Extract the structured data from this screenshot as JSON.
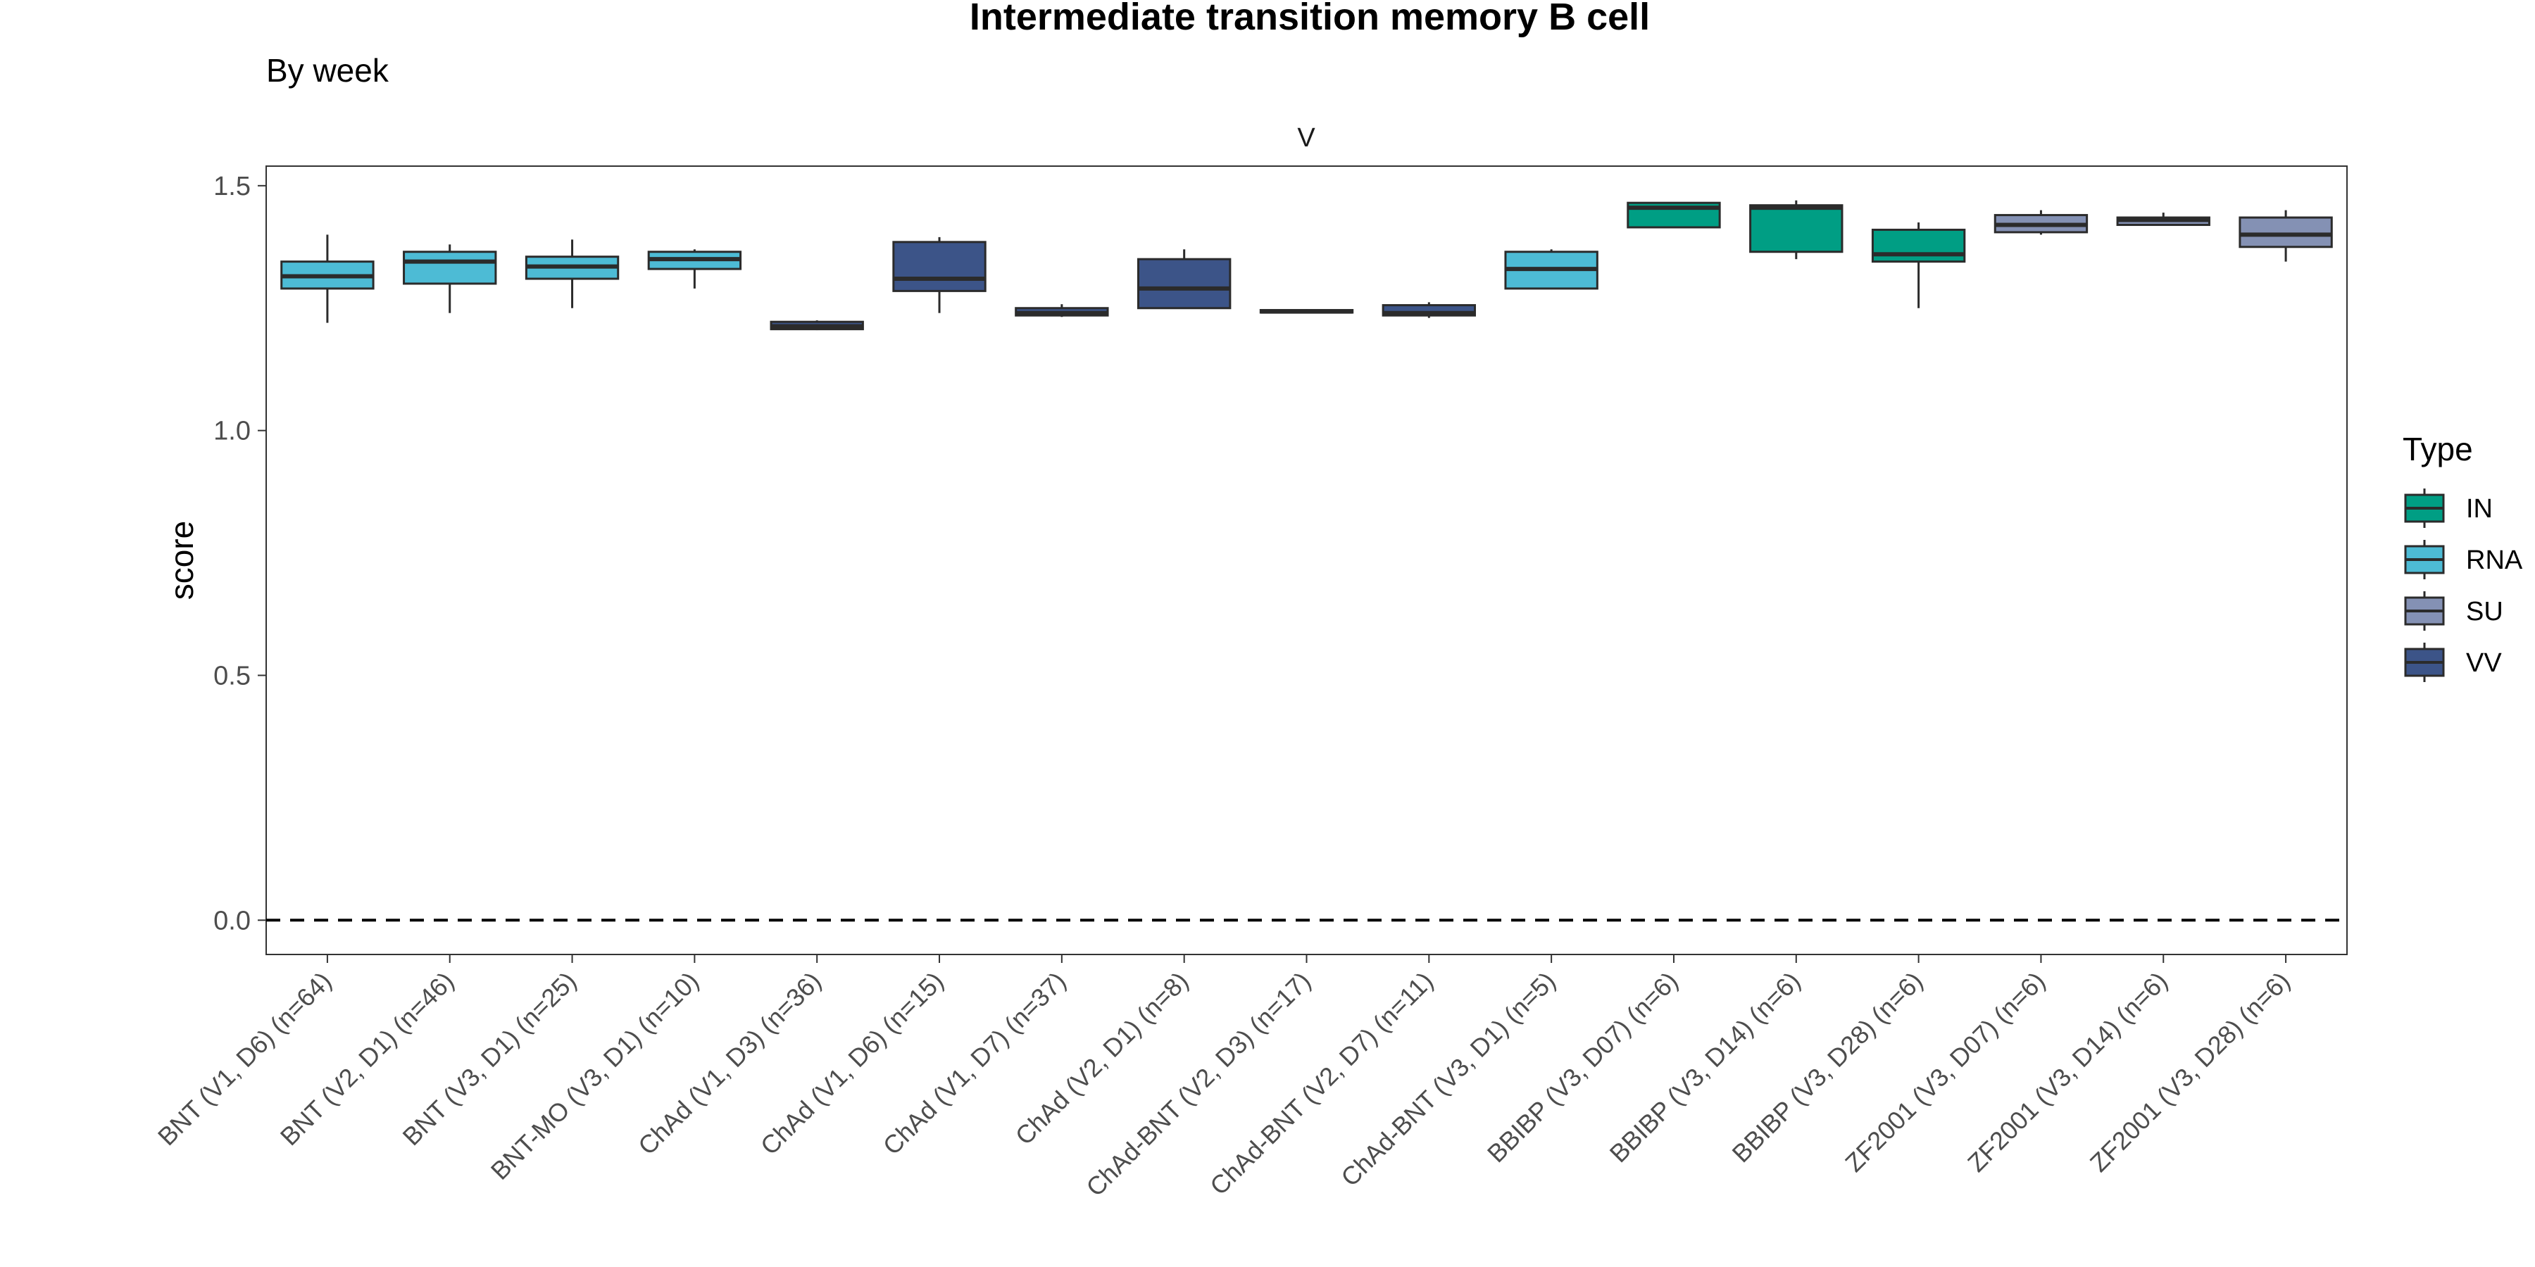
{
  "chart_data": {
    "type": "box",
    "title": "Intermediate transition memory B cell",
    "subtitle": "By week",
    "facet": "V",
    "ylabel": "score",
    "xlabel": "",
    "ylim": [
      -0.07,
      1.54
    ],
    "yticks": [
      0.0,
      0.5,
      1.0,
      1.5
    ],
    "ytick_labels": [
      "0.0",
      "0.5",
      "1.0",
      "1.5"
    ],
    "reference_line": 0.0,
    "grid": false,
    "legend": {
      "title": "Type",
      "placement": "right",
      "entries": [
        {
          "label": "IN",
          "color": "#009E84"
        },
        {
          "label": "RNA",
          "color": "#4DBBD5"
        },
        {
          "label": "SU",
          "color": "#8491B4"
        },
        {
          "label": "VV",
          "color": "#3C5488"
        }
      ]
    },
    "categories": [
      "BNT (V1, D6) (n=64)",
      "BNT (V2, D1) (n=46)",
      "BNT (V3, D1) (n=25)",
      "BNT-MO (V3, D1) (n=10)",
      "ChAd (V1, D3) (n=36)",
      "ChAd (V1, D6) (n=15)",
      "ChAd (V1, D7) (n=37)",
      "ChAd (V2, D1) (n=8)",
      "ChAd-BNT (V2, D3) (n=17)",
      "ChAd-BNT (V2, D7) (n=11)",
      "ChAd-BNT (V3, D1) (n=5)",
      "BBIBP (V3, D07) (n=6)",
      "BBIBP (V3, D14) (n=6)",
      "BBIBP (V3, D28) (n=6)",
      "ZF2001 (V3, D07) (n=6)",
      "ZF2001 (V3, D14) (n=6)",
      "ZF2001 (V3, D28) (n=6)"
    ],
    "boxes": [
      {
        "type": "RNA",
        "whisker_low": 1.22,
        "q1": 1.29,
        "median": 1.315,
        "q3": 1.345,
        "whisker_high": 1.4
      },
      {
        "type": "RNA",
        "whisker_low": 1.24,
        "q1": 1.3,
        "median": 1.345,
        "q3": 1.365,
        "whisker_high": 1.38
      },
      {
        "type": "RNA",
        "whisker_low": 1.25,
        "q1": 1.31,
        "median": 1.335,
        "q3": 1.355,
        "whisker_high": 1.39
      },
      {
        "type": "RNA",
        "whisker_low": 1.29,
        "q1": 1.33,
        "median": 1.35,
        "q3": 1.365,
        "whisker_high": 1.37
      },
      {
        "type": "VV",
        "whisker_low": 1.205,
        "q1": 1.207,
        "median": 1.213,
        "q3": 1.222,
        "whisker_high": 1.225
      },
      {
        "type": "VV",
        "whisker_low": 1.24,
        "q1": 1.285,
        "median": 1.31,
        "q3": 1.385,
        "whisker_high": 1.395
      },
      {
        "type": "VV",
        "whisker_low": 1.232,
        "q1": 1.235,
        "median": 1.24,
        "q3": 1.25,
        "whisker_high": 1.258
      },
      {
        "type": "VV",
        "whisker_low": 1.25,
        "q1": 1.25,
        "median": 1.29,
        "q3": 1.35,
        "whisker_high": 1.37
      },
      {
        "type": "VV",
        "whisker_low": 1.24,
        "q1": 1.241,
        "median": 1.243,
        "q3": 1.246,
        "whisker_high": 1.248
      },
      {
        "type": "VV",
        "whisker_low": 1.23,
        "q1": 1.235,
        "median": 1.24,
        "q3": 1.256,
        "whisker_high": 1.262
      },
      {
        "type": "RNA",
        "whisker_low": 1.29,
        "q1": 1.29,
        "median": 1.33,
        "q3": 1.365,
        "whisker_high": 1.37
      },
      {
        "type": "IN",
        "whisker_low": 1.415,
        "q1": 1.415,
        "median": 1.455,
        "q3": 1.465,
        "whisker_high": 1.465
      },
      {
        "type": "IN",
        "whisker_low": 1.35,
        "q1": 1.365,
        "median": 1.455,
        "q3": 1.46,
        "whisker_high": 1.47
      },
      {
        "type": "IN",
        "whisker_low": 1.25,
        "q1": 1.345,
        "median": 1.36,
        "q3": 1.41,
        "whisker_high": 1.425
      },
      {
        "type": "SU",
        "whisker_low": 1.4,
        "q1": 1.405,
        "median": 1.42,
        "q3": 1.44,
        "whisker_high": 1.45
      },
      {
        "type": "SU",
        "whisker_low": 1.42,
        "q1": 1.42,
        "median": 1.43,
        "q3": 1.435,
        "whisker_high": 1.445
      },
      {
        "type": "SU",
        "whisker_low": 1.345,
        "q1": 1.375,
        "median": 1.4,
        "q3": 1.435,
        "whisker_high": 1.45
      }
    ]
  }
}
